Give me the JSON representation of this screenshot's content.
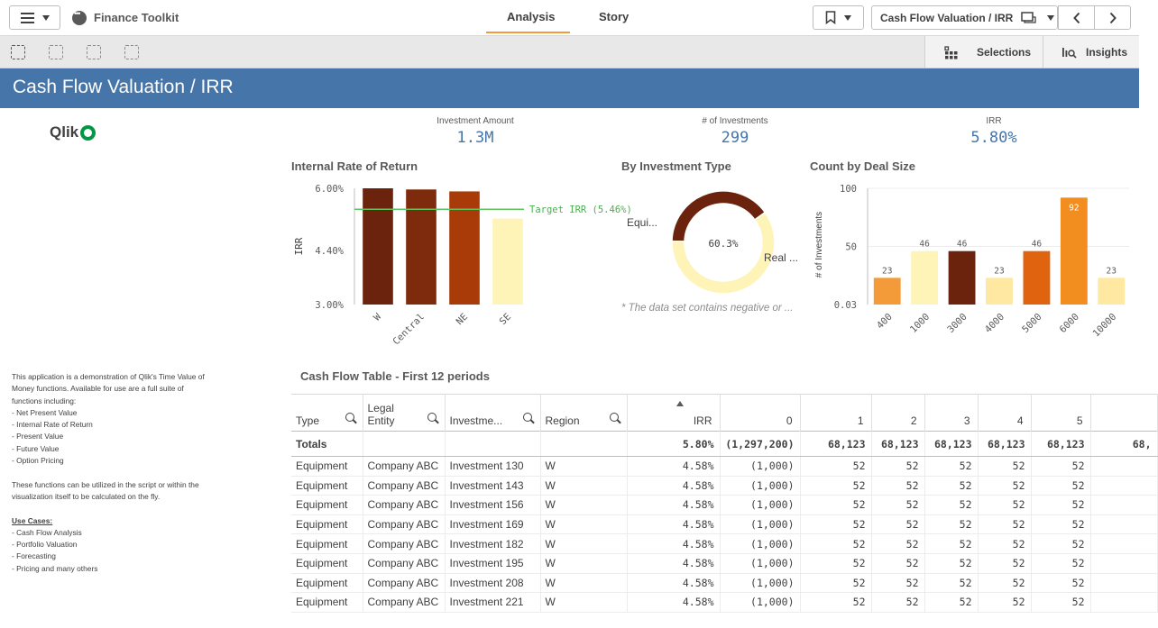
{
  "app": {
    "name": "Finance Toolkit"
  },
  "nav": {
    "tabs": [
      {
        "label": "Analysis"
      },
      {
        "label": "Story"
      }
    ],
    "sheet_name": "Cash Flow Valuation / IRR"
  },
  "toolbar": {
    "selections_label": "Selections",
    "insights_label": "Insights"
  },
  "sheet": {
    "title": "Cash Flow Valuation / IRR"
  },
  "logo": {
    "text": "Qlik"
  },
  "kpis": [
    {
      "label": "Investment Amount",
      "value": "1.3M"
    },
    {
      "label": "# of Investments",
      "value": "299"
    },
    {
      "label": "IRR",
      "value": "5.80%"
    }
  ],
  "colors": {
    "accent": "#4575a9",
    "tab_underline": "#f29b38",
    "target_line": "#5ec45e"
  },
  "chart_data": [
    {
      "type": "bar",
      "title": "Internal Rate of Return",
      "ylabel": "IRR",
      "xlabel": "",
      "categories": [
        "W",
        "Central",
        "NE",
        "SE"
      ],
      "values": [
        6.0,
        5.97,
        5.92,
        5.22
      ],
      "colors": [
        "#6b230d",
        "#7e2a0c",
        "#a83b08",
        "#fef4b8"
      ],
      "ylim": [
        3.0,
        6.0
      ],
      "yticks": [
        "3.00%",
        "4.40%",
        "6.00%"
      ],
      "reference_line": {
        "label": "Target IRR (5.46%)",
        "value": 5.46
      }
    },
    {
      "type": "pie",
      "title": "By Investment Type",
      "slices": [
        {
          "label": "Equi...",
          "value": 39.7,
          "color": "#6b230d"
        },
        {
          "label": "Real ...",
          "value": 60.3,
          "color": "#fef4b8"
        }
      ],
      "center_label": "60.3%",
      "footnote": "* The data set contains negative or ..."
    },
    {
      "type": "bar",
      "title": "Count by Deal Size",
      "ylabel": "# of Investments",
      "xlabel": "",
      "categories": [
        "400",
        "1000",
        "3000",
        "4000",
        "5000",
        "6000",
        "10000"
      ],
      "values": [
        23,
        46,
        46,
        23,
        46,
        92,
        23
      ],
      "colors": [
        "#f29b38",
        "#fef4b8",
        "#6b230d",
        "#fee8a2",
        "#e06410",
        "#f28d1f",
        "#fee8a2"
      ],
      "ylim": [
        0.03,
        100
      ],
      "yticks": [
        "0.03",
        "50",
        "100"
      ]
    }
  ],
  "description": {
    "intro": [
      "This application is a demonstration of Qlik's Time Value of",
      "Money functions. Available for use are a full suite of",
      "functions including:"
    ],
    "functions": [
      "- Net Present Value",
      "- Internal Rate of Return",
      "- Present Value",
      "- Future Value",
      "- Option Pricing"
    ],
    "note": [
      "These functions can be utilized in the script or within the",
      "visualization itself to be calculated on the fly."
    ],
    "use_cases_title": "Use Cases:",
    "use_cases": [
      "- Cash Flow Analysis",
      "- Portfolio Valuation",
      "- Forecasting",
      "- Pricing and many others"
    ]
  },
  "table": {
    "title": "Cash Flow Table - First 12 periods",
    "columns": [
      "Type",
      "Legal Entity",
      "Investme...",
      "Region",
      "IRR",
      "0",
      "1",
      "2",
      "3",
      "4",
      "5",
      ""
    ],
    "totals": [
      "Totals",
      "",
      "",
      "",
      "5.80%",
      "(1,297,200)",
      "68,123",
      "68,123",
      "68,123",
      "68,123",
      "68,123",
      "68,"
    ],
    "rows": [
      [
        "Equipment",
        "Company ABC",
        "Investment 130",
        "W",
        "4.58%",
        "(1,000)",
        "52",
        "52",
        "52",
        "52",
        "52",
        ""
      ],
      [
        "Equipment",
        "Company ABC",
        "Investment 143",
        "W",
        "4.58%",
        "(1,000)",
        "52",
        "52",
        "52",
        "52",
        "52",
        ""
      ],
      [
        "Equipment",
        "Company ABC",
        "Investment 156",
        "W",
        "4.58%",
        "(1,000)",
        "52",
        "52",
        "52",
        "52",
        "52",
        ""
      ],
      [
        "Equipment",
        "Company ABC",
        "Investment 169",
        "W",
        "4.58%",
        "(1,000)",
        "52",
        "52",
        "52",
        "52",
        "52",
        ""
      ],
      [
        "Equipment",
        "Company ABC",
        "Investment 182",
        "W",
        "4.58%",
        "(1,000)",
        "52",
        "52",
        "52",
        "52",
        "52",
        ""
      ],
      [
        "Equipment",
        "Company ABC",
        "Investment 195",
        "W",
        "4.58%",
        "(1,000)",
        "52",
        "52",
        "52",
        "52",
        "52",
        ""
      ],
      [
        "Equipment",
        "Company ABC",
        "Investment 208",
        "W",
        "4.58%",
        "(1,000)",
        "52",
        "52",
        "52",
        "52",
        "52",
        ""
      ],
      [
        "Equipment",
        "Company ABC",
        "Investment 221",
        "W",
        "4.58%",
        "(1,000)",
        "52",
        "52",
        "52",
        "52",
        "52",
        ""
      ]
    ]
  }
}
